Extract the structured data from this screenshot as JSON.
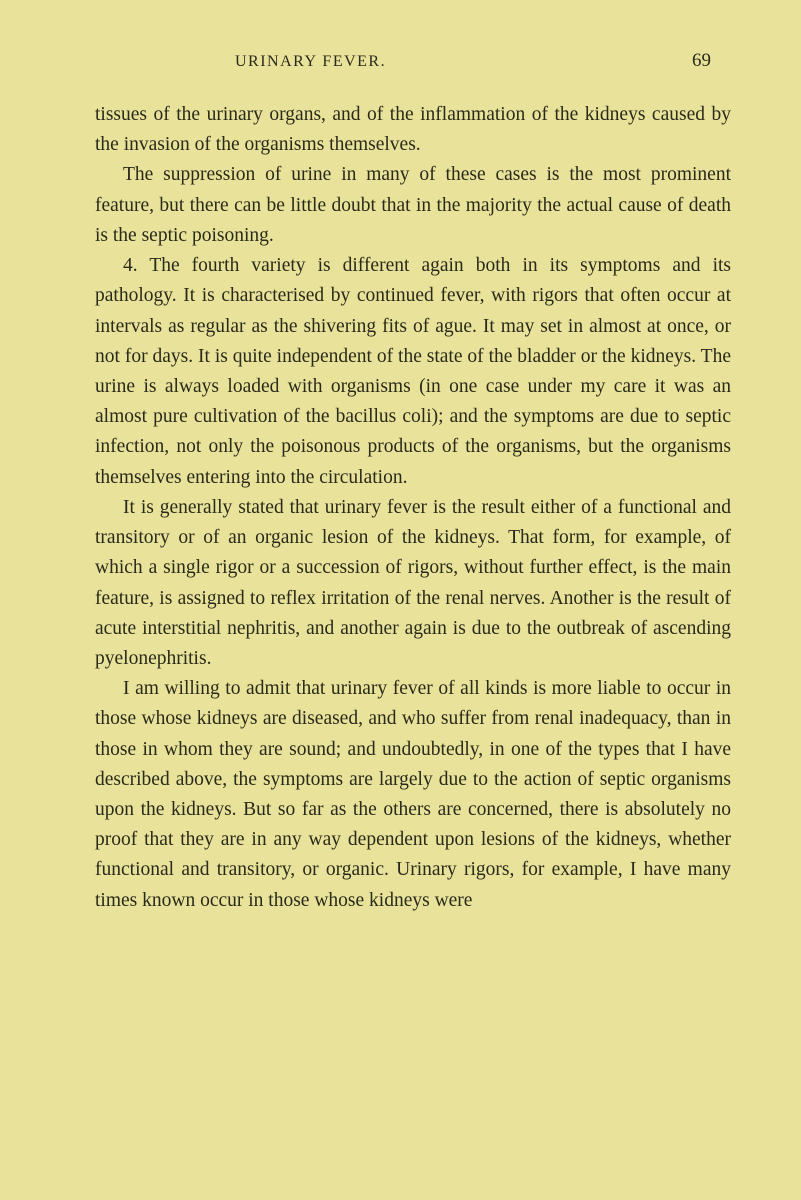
{
  "header": {
    "running_head": "URINARY FEVER.",
    "page_number": "69"
  },
  "paragraphs": {
    "p1": "tissues of the urinary organs, and of the inflammation of the kidneys caused by the invasion of the organisms themselves.",
    "p2": "The suppression of urine in many of these cases is the most prominent feature, but there can be little doubt that in the majority the actual cause of death is the septic poisoning.",
    "p3": "4. The fourth variety is different again both in its symptoms and its pathology. It is characterised by continued fever, with rigors that often occur at intervals as regular as the shivering fits of ague. It may set in almost at once, or not for days. It is quite independent of the state of the bladder or the kidneys. The urine is always loaded with organisms (in one case under my care it was an almost pure cultivation of the bacillus coli); and the symptoms are due to septic infection, not only the poisonous products of the organisms, but the organisms themselves entering into the circulation.",
    "p4": "It is generally stated that urinary fever is the result either of a functional and transitory or of an organic lesion of the kidneys. That form, for example, of which a single rigor or a succession of rigors, without further effect, is the main feature, is assigned to reflex irritation of the renal nerves. Another is the result of acute interstitial nephritis, and another again is due to the outbreak of ascending pyelonephritis.",
    "p5": "I am willing to admit that urinary fever of all kinds is more liable to occur in those whose kidneys are diseased, and who suffer from renal inadequacy, than in those in whom they are sound; and undoubtedly, in one of the types that I have described above, the symptoms are largely due to the action of septic organisms upon the kidneys. But so far as the others are concerned, there is absolutely no proof that they are in any way dependent upon lesions of the kidneys, whether functional and transitory, or organic. Urinary rigors, for example, I have many times known occur in those whose kidneys were"
  },
  "colors": {
    "background": "#e8e29a",
    "text": "#2a2a1a"
  },
  "typography": {
    "body_fontsize": 19.5,
    "header_fontsize": 16,
    "pagenum_fontsize": 19,
    "line_height": 1.55,
    "font_family": "Georgia, serif"
  }
}
